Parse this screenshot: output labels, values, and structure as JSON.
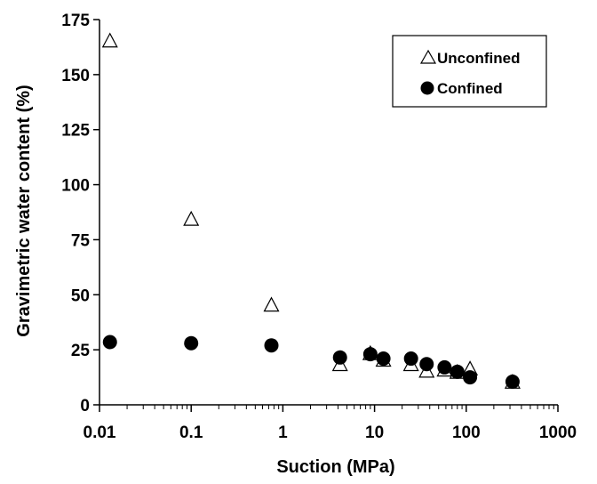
{
  "chart_data": {
    "type": "scatter",
    "xscale": "log",
    "xlim": [
      0.01,
      1000
    ],
    "ylim": [
      0,
      175
    ],
    "xlabel": "Suction (MPa)",
    "ylabel": "Gravimetric water content (%)",
    "x_ticks": [
      0.01,
      0.1,
      1,
      10,
      100,
      1000
    ],
    "x_tick_labels": [
      "0.01",
      "0.1",
      "1",
      "10",
      "100",
      "1000"
    ],
    "y_ticks": [
      0,
      25,
      50,
      75,
      100,
      125,
      150,
      175
    ],
    "y_tick_labels": [
      "0",
      "25",
      "50",
      "75",
      "100",
      "125",
      "150",
      "175"
    ],
    "grid": false,
    "legend_position": "top-right",
    "series": [
      {
        "name": "Unconfined",
        "marker": "open-triangle",
        "color": "#000000",
        "points": [
          {
            "x": 0.013,
            "y": 165
          },
          {
            "x": 0.1,
            "y": 84
          },
          {
            "x": 0.75,
            "y": 45
          },
          {
            "x": 4.2,
            "y": 18
          },
          {
            "x": 9,
            "y": 23
          },
          {
            "x": 12.5,
            "y": 20
          },
          {
            "x": 25,
            "y": 18
          },
          {
            "x": 37,
            "y": 15
          },
          {
            "x": 58,
            "y": 15.5
          },
          {
            "x": 80,
            "y": 14.5
          },
          {
            "x": 110,
            "y": 16
          },
          {
            "x": 320,
            "y": 10
          }
        ]
      },
      {
        "name": "Confined",
        "marker": "filled-circle",
        "color": "#000000",
        "points": [
          {
            "x": 0.013,
            "y": 28.5
          },
          {
            "x": 0.1,
            "y": 28
          },
          {
            "x": 0.75,
            "y": 27
          },
          {
            "x": 4.2,
            "y": 21.5
          },
          {
            "x": 9,
            "y": 23
          },
          {
            "x": 12.5,
            "y": 21
          },
          {
            "x": 25,
            "y": 21
          },
          {
            "x": 37,
            "y": 18.5
          },
          {
            "x": 58,
            "y": 17
          },
          {
            "x": 80,
            "y": 15
          },
          {
            "x": 110,
            "y": 12.5
          },
          {
            "x": 320,
            "y": 10.5
          }
        ]
      }
    ]
  }
}
